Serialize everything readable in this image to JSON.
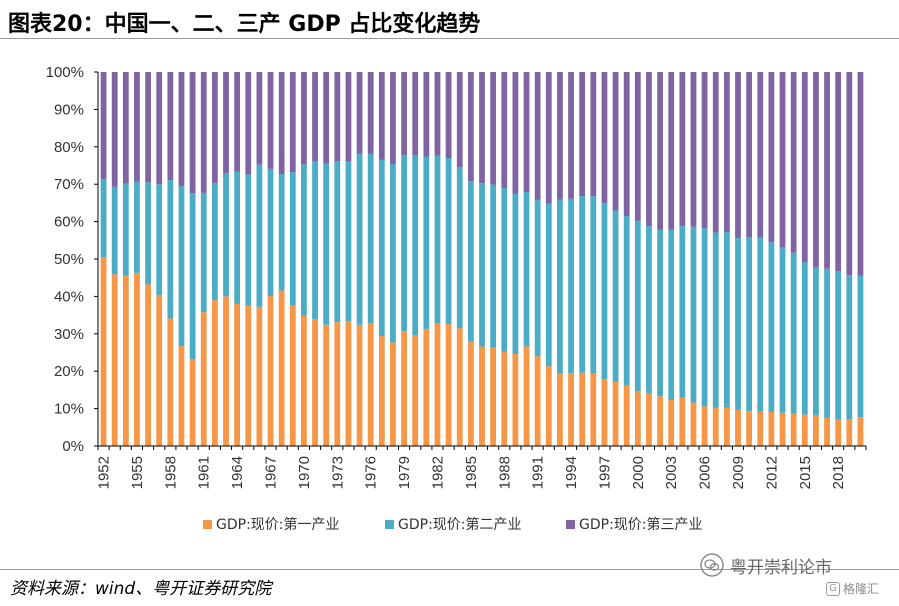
{
  "title": "图表20：中国一、二、三产 GDP 占比变化趋势",
  "source": "资料来源：wind、粤开证券研究院",
  "watermark": {
    "account": "粤开崇利论市",
    "brand": "格隆汇",
    "brand_icon": "logo-icon"
  },
  "colors": {
    "primary": "#F79646",
    "secondary": "#4BACC6",
    "tertiary": "#8064A2",
    "grid": "#d9d9d9",
    "axis": "#000000"
  },
  "chart_data": {
    "type": "bar",
    "stacked": true,
    "title": "",
    "xlabel": "",
    "ylabel": "",
    "ylim": [
      0,
      100
    ],
    "yticks": [
      "0%",
      "10%",
      "20%",
      "30%",
      "40%",
      "50%",
      "60%",
      "70%",
      "80%",
      "90%",
      "100%"
    ],
    "grid": false,
    "legend_position": "bottom",
    "x": [
      1952,
      1953,
      1954,
      1955,
      1956,
      1957,
      1958,
      1959,
      1960,
      1961,
      1962,
      1963,
      1964,
      1965,
      1966,
      1967,
      1968,
      1969,
      1970,
      1971,
      1972,
      1973,
      1974,
      1975,
      1976,
      1977,
      1978,
      1979,
      1980,
      1981,
      1982,
      1983,
      1984,
      1985,
      1986,
      1987,
      1988,
      1989,
      1990,
      1991,
      1992,
      1993,
      1994,
      1995,
      1996,
      1997,
      1998,
      1999,
      2000,
      2001,
      2002,
      2003,
      2004,
      2005,
      2006,
      2007,
      2008,
      2009,
      2010,
      2011,
      2012,
      2013,
      2014,
      2015,
      2016,
      2017,
      2018,
      2019,
      2020
    ],
    "x_tick_labels": [
      "1952",
      "1955",
      "1958",
      "1961",
      "1964",
      "1967",
      "1970",
      "1973",
      "1976",
      "1979",
      "1982",
      "1985",
      "1988",
      "1991",
      "1994",
      "1997",
      "2000",
      "2003",
      "2006",
      "2009",
      "2012",
      "2015",
      "2018"
    ],
    "series": [
      {
        "name": "GDP:现价:第一产业",
        "color": "#F79646",
        "values": [
          50.5,
          45.9,
          45.6,
          46.3,
          43.2,
          40.3,
          34.1,
          26.7,
          23.2,
          35.8,
          39.0,
          40.0,
          38.0,
          37.5,
          37.2,
          40.1,
          41.6,
          37.6,
          34.8,
          33.9,
          32.4,
          33.1,
          33.4,
          32.4,
          32.8,
          29.4,
          27.7,
          30.7,
          29.6,
          31.3,
          32.8,
          32.6,
          31.5,
          27.9,
          26.6,
          26.3,
          25.2,
          24.6,
          26.6,
          24.0,
          21.3,
          19.3,
          19.5,
          19.6,
          19.3,
          17.9,
          17.2,
          16.1,
          14.7,
          14.0,
          13.3,
          12.3,
          12.9,
          11.6,
          10.6,
          10.2,
          10.2,
          9.6,
          9.3,
          9.2,
          9.1,
          8.9,
          8.6,
          8.4,
          8.1,
          7.5,
          7.0,
          7.1,
          7.7
        ]
      },
      {
        "name": "GDP:现价:第二产业",
        "color": "#4BACC6",
        "values": [
          20.8,
          23.4,
          24.6,
          24.4,
          27.3,
          29.7,
          37.0,
          42.8,
          44.4,
          31.9,
          31.3,
          33.0,
          35.3,
          35.1,
          38.0,
          34.0,
          31.1,
          35.6,
          40.5,
          42.2,
          43.1,
          43.1,
          42.7,
          45.7,
          45.4,
          47.1,
          47.7,
          47.1,
          48.1,
          46.1,
          44.8,
          44.4,
          43.1,
          42.9,
          43.7,
          43.6,
          43.8,
          42.8,
          41.3,
          41.8,
          43.5,
          46.6,
          46.6,
          47.2,
          47.5,
          47.1,
          45.8,
          45.4,
          45.5,
          44.8,
          44.5,
          45.6,
          45.9,
          47.0,
          47.6,
          46.9,
          47.0,
          46.0,
          46.5,
          46.5,
          45.4,
          44.2,
          43.1,
          40.8,
          39.6,
          39.9,
          39.7,
          38.6,
          37.8
        ]
      },
      {
        "name": "GDP:现价:第三产业",
        "color": "#8064A2",
        "values": [
          28.7,
          30.7,
          29.8,
          29.3,
          29.5,
          30.0,
          28.9,
          30.5,
          32.4,
          32.3,
          29.7,
          27.0,
          26.7,
          27.4,
          24.8,
          25.9,
          27.3,
          26.8,
          24.7,
          23.9,
          24.5,
          23.8,
          23.9,
          21.9,
          21.8,
          23.5,
          24.6,
          22.2,
          22.3,
          22.6,
          22.4,
          23.0,
          25.4,
          29.2,
          29.7,
          30.1,
          31.0,
          32.6,
          32.1,
          34.2,
          35.2,
          34.1,
          33.9,
          33.2,
          33.2,
          35.0,
          37.0,
          38.5,
          39.8,
          41.2,
          42.2,
          42.1,
          41.2,
          41.4,
          41.8,
          42.9,
          42.8,
          44.4,
          44.2,
          44.3,
          45.5,
          46.9,
          48.3,
          50.8,
          52.3,
          52.6,
          53.3,
          54.3,
          54.5
        ]
      }
    ]
  }
}
